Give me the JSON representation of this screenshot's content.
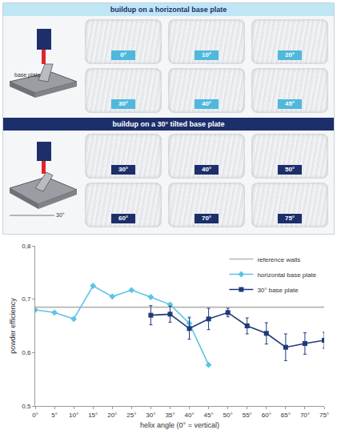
{
  "panels": [
    {
      "title": "buildup on a horizontal base plate",
      "icon_label": "base plate",
      "color": "#4fb8dc",
      "labels": [
        "0°",
        "10°",
        "20°",
        "30°",
        "40°",
        "45°"
      ]
    },
    {
      "title": "buildup on a 30° tilted base plate",
      "icon_label": "30°",
      "color": "#1c2f6b",
      "labels": [
        "30°",
        "40°",
        "50°",
        "60°",
        "70°",
        "75°"
      ]
    }
  ],
  "chart_data": {
    "type": "line",
    "x_label": "helix angle (0° = vertical)",
    "y_label": "powder efficiency",
    "xlim": [
      0,
      75
    ],
    "xticks": [
      {
        "value": 0,
        "label": "0°"
      },
      {
        "value": 5,
        "label": "5°"
      },
      {
        "value": 10,
        "label": "10°"
      },
      {
        "value": 15,
        "label": "15°"
      },
      {
        "value": 20,
        "label": "20°"
      },
      {
        "value": 25,
        "label": "25°"
      },
      {
        "value": 30,
        "label": "30°"
      },
      {
        "value": 35,
        "label": "35°"
      },
      {
        "value": 40,
        "label": "40°"
      },
      {
        "value": 45,
        "label": "45°"
      },
      {
        "value": 50,
        "label": "50°"
      },
      {
        "value": 55,
        "label": "55°"
      },
      {
        "value": 60,
        "label": "60°"
      },
      {
        "value": 65,
        "label": "65°"
      },
      {
        "value": 70,
        "label": "70°"
      },
      {
        "value": 75,
        "label": "75°"
      }
    ],
    "ylim": [
      0.5,
      0.8
    ],
    "yticks": [
      {
        "value": 0.5,
        "label": "0,5"
      },
      {
        "value": 0.6,
        "label": "0,6"
      },
      {
        "value": 0.7,
        "label": "0,7"
      },
      {
        "value": 0.8,
        "label": "0,8"
      }
    ],
    "grid": false,
    "legend": "top right",
    "series": [
      {
        "name": "reference walls",
        "color": "#b4b4b4",
        "marker": "none",
        "line_style": "solid",
        "x": [
          0,
          75
        ],
        "values": [
          0.685,
          0.685
        ]
      },
      {
        "name": "horizontal base plate",
        "color": "#5cc3e6",
        "marker": "diamond",
        "line_style": "solid",
        "x": [
          0,
          5,
          10,
          15,
          20,
          25,
          30,
          35,
          40,
          45
        ],
        "values": [
          0.68,
          0.675,
          0.663,
          0.725,
          0.705,
          0.717,
          0.704,
          0.69,
          0.655,
          0.577
        ],
        "errors": [
          0,
          0,
          0,
          0,
          0,
          0,
          0,
          0,
          0.012,
          0
        ]
      },
      {
        "name": "30° base plate",
        "color": "#1f3a7a",
        "marker": "square",
        "line_style": "solid",
        "x": [
          30,
          35,
          40,
          45,
          50,
          55,
          60,
          65,
          70,
          75
        ],
        "values": [
          0.67,
          0.672,
          0.645,
          0.663,
          0.675,
          0.65,
          0.636,
          0.61,
          0.617,
          0.623
        ],
        "errors": [
          0.018,
          0.015,
          0.02,
          0.02,
          0.008,
          0.015,
          0.02,
          0.025,
          0.02,
          0.015
        ]
      }
    ]
  }
}
